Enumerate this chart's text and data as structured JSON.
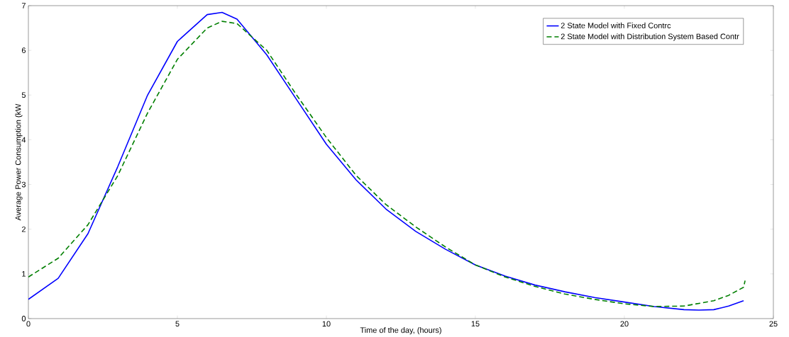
{
  "chart_data": {
    "type": "line",
    "xlabel": "Time of the day, (hours)",
    "ylabel": "Average Power Consumption (kW",
    "xlim": [
      0,
      25
    ],
    "xticks": [
      0,
      5,
      10,
      15,
      20,
      25
    ],
    "ylim": [
      0,
      7
    ],
    "yticks": [
      0,
      1,
      2,
      3,
      4,
      5,
      6,
      7
    ],
    "legend": "top right",
    "series": [
      {
        "name": "2 State Model with Fixed Contrc",
        "color": "#0000ff",
        "line_style": "solid",
        "x": [
          0,
          1,
          2,
          3,
          4,
          5,
          6,
          6.5,
          7,
          8,
          9,
          10,
          11,
          12,
          13,
          14,
          15,
          16,
          17,
          18,
          19,
          20,
          21,
          22,
          22.5,
          23,
          23.5,
          24
        ],
        "values": [
          0.43,
          0.9,
          1.9,
          3.4,
          5.0,
          6.2,
          6.8,
          6.85,
          6.7,
          5.9,
          4.9,
          3.9,
          3.1,
          2.45,
          1.95,
          1.55,
          1.2,
          0.95,
          0.75,
          0.6,
          0.47,
          0.37,
          0.27,
          0.2,
          0.19,
          0.2,
          0.28,
          0.4
        ]
      },
      {
        "name": "2 State Model with Distribution System Based Contr",
        "color": "#007f00",
        "line_style": "dashed",
        "x": [
          0,
          1,
          2,
          3,
          4,
          5,
          6,
          6.5,
          7,
          8,
          9,
          10,
          11,
          12,
          13,
          14,
          15,
          16,
          17,
          18,
          19,
          20,
          21,
          22,
          23,
          23.5,
          24,
          24.05
        ],
        "values": [
          0.93,
          1.35,
          2.1,
          3.2,
          4.6,
          5.8,
          6.5,
          6.65,
          6.6,
          6.0,
          5.0,
          4.05,
          3.2,
          2.55,
          2.05,
          1.6,
          1.2,
          0.93,
          0.72,
          0.55,
          0.43,
          0.33,
          0.27,
          0.28,
          0.4,
          0.52,
          0.7,
          0.85
        ]
      }
    ]
  }
}
